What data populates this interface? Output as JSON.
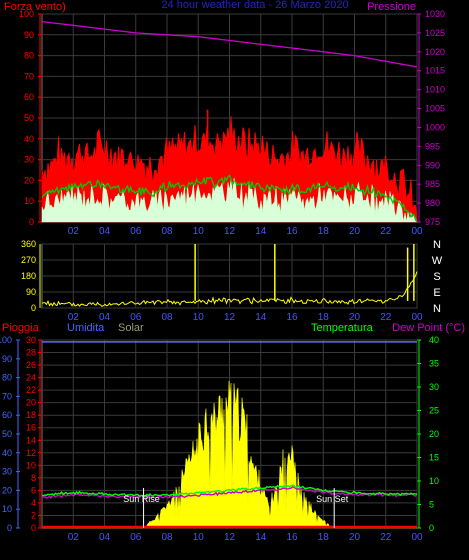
{
  "chart_data": [
    {
      "type": "line",
      "panel": "wind-pressure",
      "title": "24 hour weather data - 26 Marzo 2020",
      "left_label": "Forza vento)",
      "right_label": "Pressione",
      "left_axis": {
        "min": 0,
        "max": 100,
        "ticks": [
          0,
          10,
          20,
          30,
          40,
          50,
          60,
          70,
          80,
          90,
          100
        ]
      },
      "right_axis": {
        "min": 975,
        "max": 1030,
        "ticks": [
          975,
          980,
          985,
          990,
          995,
          1000,
          1005,
          1010,
          1015,
          1020,
          1025,
          1030
        ]
      },
      "x_tick_labels": [
        "02",
        "04",
        "06",
        "08",
        "10",
        "12",
        "14",
        "16",
        "18",
        "20",
        "22",
        "00"
      ],
      "x_range_hours": [
        0,
        24
      ],
      "grid": true,
      "colors": {
        "gust": "#ff0000",
        "average": "#00cc00",
        "wind": "#c8ffc8",
        "pressure": "#cc00cc",
        "grid": "#444444"
      },
      "series": [
        {
          "name": "",
          "axis": "right",
          "color": "#cc00cc",
          "x": [
            0,
            2,
            4,
            6,
            8,
            10,
            12,
            14,
            16,
            18,
            20,
            22,
            24
          ],
          "y": [
            1028,
            1027,
            1026,
            1025,
            1024.5,
            1024,
            1023,
            1022,
            1021,
            1020,
            1019,
            1017.5,
            1016
          ]
        },
        {
          "name": "",
          "axis": "left",
          "color": "#ff0000",
          "x": [
            0,
            1,
            2,
            3,
            4,
            5,
            6,
            7,
            8,
            9,
            10,
            11,
            12,
            13,
            14,
            15,
            16,
            17,
            18,
            19,
            20,
            21,
            22,
            23,
            23.5,
            24
          ],
          "y": [
            25,
            30,
            33,
            32,
            36,
            31,
            30,
            27,
            33,
            35,
            40,
            38,
            42,
            37,
            36,
            30,
            33,
            32,
            37,
            33,
            34,
            30,
            26,
            20,
            12,
            2
          ]
        },
        {
          "name": "",
          "axis": "left",
          "color": "#00cc00",
          "x": [
            0,
            1,
            2,
            3,
            4,
            5,
            6,
            7,
            8,
            9,
            10,
            11,
            12,
            13,
            14,
            15,
            16,
            17,
            18,
            19,
            20,
            21,
            22,
            23,
            23.5,
            24
          ],
          "y": [
            13,
            15,
            17,
            18,
            18,
            16,
            15,
            14,
            17,
            18,
            20,
            19,
            21,
            18,
            17,
            15,
            16,
            15,
            18,
            16,
            17,
            15,
            12,
            9,
            5,
            1
          ]
        },
        {
          "name": "",
          "axis": "left",
          "color": "#c8ffc8",
          "x": [
            0,
            1,
            2,
            3,
            4,
            5,
            6,
            7,
            8,
            9,
            10,
            11,
            12,
            13,
            14,
            15,
            16,
            17,
            18,
            19,
            20,
            21,
            22,
            23,
            23.5,
            24
          ],
          "y": [
            8,
            10,
            12,
            13,
            12,
            11,
            10,
            9,
            12,
            13,
            15,
            14,
            16,
            13,
            12,
            10,
            11,
            10,
            13,
            11,
            12,
            10,
            8,
            6,
            3,
            0
          ]
        }
      ]
    },
    {
      "type": "line",
      "panel": "wind-direction",
      "left_axis": {
        "min": 0,
        "max": 360,
        "ticks": [
          0,
          90,
          180,
          270,
          360
        ]
      },
      "right_tick_labels": [
        "N",
        "E",
        "S",
        "W",
        "N"
      ],
      "x_tick_labels": [
        "02",
        "04",
        "06",
        "08",
        "10",
        "12",
        "14",
        "16",
        "18",
        "20",
        "22",
        "00"
      ],
      "x_range_hours": [
        0,
        24
      ],
      "grid": true,
      "series": [
        {
          "name": "",
          "color": "#ffff00",
          "x": [
            0,
            1,
            2,
            3,
            4,
            5,
            6,
            7,
            8,
            9,
            10,
            11,
            12,
            13,
            14,
            15,
            16,
            17,
            18,
            19,
            20,
            21,
            22,
            23,
            23.5,
            24
          ],
          "y": [
            30,
            22,
            18,
            20,
            25,
            24,
            28,
            30,
            30,
            28,
            35,
            40,
            45,
            42,
            40,
            44,
            42,
            40,
            38,
            36,
            38,
            40,
            45,
            60,
            120,
            200
          ],
          "spikes": [
            [
              9.8,
              360
            ],
            [
              14.9,
              360
            ],
            [
              23.4,
              340
            ],
            [
              23.8,
              360
            ]
          ]
        }
      ]
    },
    {
      "type": "area",
      "panel": "rain-humidity-solar-temp",
      "labels": {
        "rain": "Pioggia",
        "humidity": "Umidita",
        "solar": "Solar",
        "temperature": "Temperatura",
        "dew_point": "Dew Point (°C)"
      },
      "left_axis_humidity": {
        "min": 0,
        "max": 100,
        "ticks": [
          0,
          10,
          20,
          30,
          40,
          50,
          60,
          70,
          80,
          90,
          100
        ]
      },
      "left_axis_rain": {
        "min": 0,
        "max": 30,
        "ticks": [
          0,
          2,
          4,
          6,
          8,
          10,
          12,
          14,
          16,
          18,
          20,
          22,
          24,
          26,
          28,
          30
        ]
      },
      "right_axis_temperature": {
        "min": 0,
        "max": 40,
        "ticks": [
          0,
          5,
          10,
          15,
          20,
          25,
          30,
          35,
          40
        ]
      },
      "x_tick_labels": [
        "02",
        "04",
        "06",
        "08",
        "10",
        "12",
        "14",
        "16",
        "18",
        "20",
        "22",
        "00"
      ],
      "x_range_hours": [
        0,
        24
      ],
      "annotations": [
        {
          "text": "Sun Rise",
          "hour": 6.5
        },
        {
          "text": "Sun Set",
          "hour": 18.7
        }
      ],
      "grid": true,
      "colors": {
        "rain": "#ff0000",
        "humidity": "#4444ff",
        "solar": "#ffff00",
        "temperature": "#00ff00",
        "dew_point": "#cc00cc"
      },
      "series": [
        {
          "name": "",
          "unit": "humidity",
          "color": "#6666ff",
          "x": [
            0,
            24
          ],
          "y": [
            99,
            99
          ]
        },
        {
          "name": "",
          "unit": "humidity",
          "color": "#ffff00",
          "x": [
            0,
            6.5,
            7,
            8,
            9,
            9.5,
            10,
            10.5,
            11,
            11.5,
            12,
            12.5,
            13,
            13.5,
            14,
            14.5,
            15,
            15.5,
            16,
            16.5,
            17,
            17.5,
            18,
            18.7,
            19,
            24
          ],
          "y": [
            0,
            0,
            4,
            12,
            28,
            38,
            48,
            62,
            60,
            68,
            70,
            66,
            60,
            35,
            25,
            12,
            22,
            40,
            48,
            20,
            14,
            8,
            4,
            0,
            0,
            0
          ]
        },
        {
          "name": "",
          "unit": "temperature",
          "color": "#00ff00",
          "x": [
            0,
            2,
            4,
            6,
            8,
            10,
            12,
            14,
            16,
            18,
            20,
            22,
            24
          ],
          "y": [
            7,
            7.5,
            7.2,
            7,
            7,
            7.5,
            8,
            8.5,
            9,
            8,
            7.5,
            7.3,
            7.2
          ]
        },
        {
          "name": "",
          "unit": "temperature",
          "color": "#cc00cc",
          "x": [
            0,
            2,
            4,
            6,
            8,
            10,
            12,
            14,
            16,
            18,
            20,
            22,
            24
          ],
          "y": [
            6.5,
            7,
            6.8,
            6.6,
            6.6,
            7,
            7.5,
            8,
            8.5,
            7.6,
            7.1,
            7,
            7
          ]
        },
        {
          "name": "",
          "unit": "rain",
          "color": "#ff0000",
          "x": [
            0,
            24
          ],
          "y": [
            0,
            0
          ]
        }
      ]
    }
  ]
}
